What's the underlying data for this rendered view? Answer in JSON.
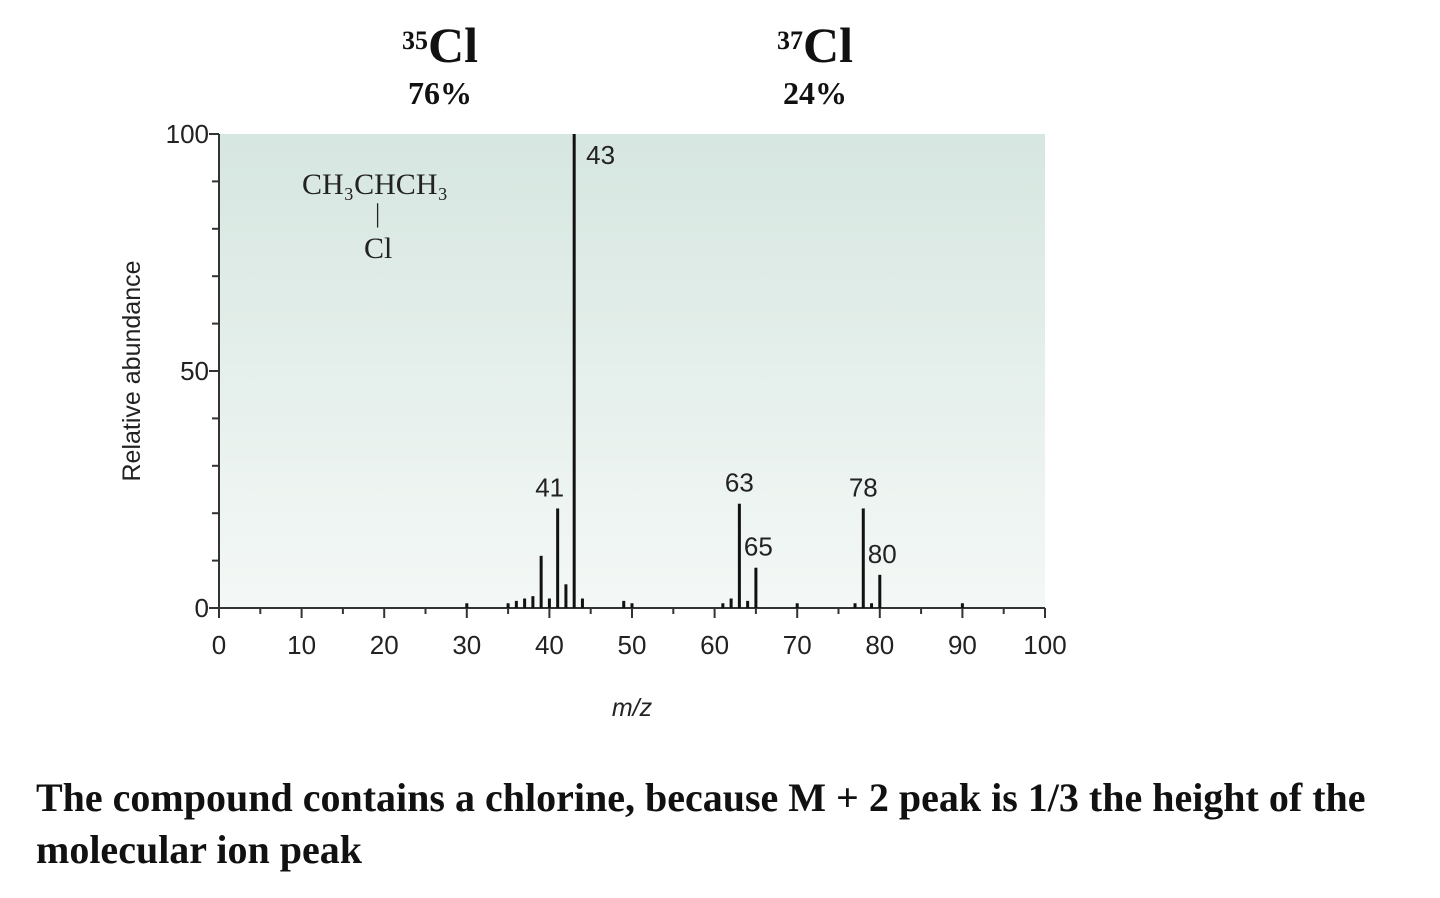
{
  "isotopes": [
    {
      "mass": "35",
      "symbol": "Cl",
      "percent": "76%"
    },
    {
      "mass": "37",
      "symbol": "Cl",
      "percent": "24%"
    }
  ],
  "structure": {
    "line1": "CH₃CHCH₃",
    "bond": "|",
    "line2": "Cl"
  },
  "caption": "The compound contains a chlorine, because M + 2 peak is 1/3 the height of the molecular ion peak",
  "chart_data": {
    "type": "bar",
    "xlabel": "m/z",
    "ylabel": "Relative abundance",
    "xlim": [
      0,
      100
    ],
    "ylim": [
      0,
      100
    ],
    "x_ticks": [
      0,
      10,
      20,
      30,
      40,
      50,
      60,
      70,
      80,
      90,
      100
    ],
    "y_ticks": [
      0,
      50,
      100
    ],
    "peaks": [
      {
        "mz": 30,
        "abundance": 1
      },
      {
        "mz": 35,
        "abundance": 1
      },
      {
        "mz": 36,
        "abundance": 1.5
      },
      {
        "mz": 37,
        "abundance": 2
      },
      {
        "mz": 38,
        "abundance": 2.5
      },
      {
        "mz": 39,
        "abundance": 11
      },
      {
        "mz": 40,
        "abundance": 2
      },
      {
        "mz": 41,
        "abundance": 21,
        "label": "41"
      },
      {
        "mz": 42,
        "abundance": 5
      },
      {
        "mz": 43,
        "abundance": 100,
        "label": "43"
      },
      {
        "mz": 44,
        "abundance": 2
      },
      {
        "mz": 49,
        "abundance": 1.5
      },
      {
        "mz": 50,
        "abundance": 1
      },
      {
        "mz": 61,
        "abundance": 1
      },
      {
        "mz": 62,
        "abundance": 2
      },
      {
        "mz": 63,
        "abundance": 22,
        "label": "63"
      },
      {
        "mz": 64,
        "abundance": 1.5
      },
      {
        "mz": 65,
        "abundance": 8.5,
        "label": "65"
      },
      {
        "mz": 70,
        "abundance": 1
      },
      {
        "mz": 77,
        "abundance": 1
      },
      {
        "mz": 78,
        "abundance": 21,
        "label": "78"
      },
      {
        "mz": 79,
        "abundance": 1
      },
      {
        "mz": 80,
        "abundance": 7,
        "label": "80"
      },
      {
        "mz": 90,
        "abundance": 1
      }
    ],
    "colors": {
      "plot_background_top": "#d6e6e0",
      "plot_background_bottom": "#f4f8f6",
      "bars": "#111111"
    }
  }
}
